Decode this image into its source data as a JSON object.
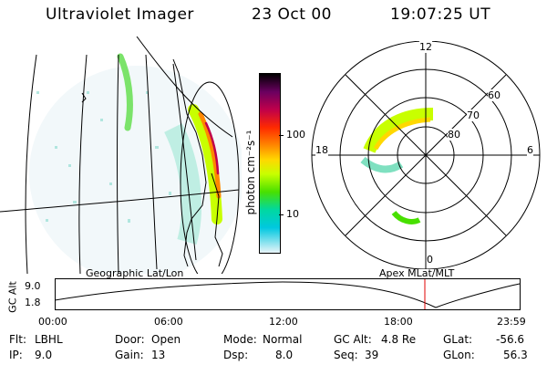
{
  "header": {
    "instrument": "Ultraviolet Imager",
    "date": "23 Oct 00",
    "time": "19:07:25 UT"
  },
  "colorbar": {
    "unit_label": "photon cm⁻²s⁻¹",
    "ticks": [
      "100",
      "10"
    ]
  },
  "polar": {
    "mlt_labels": [
      "12",
      "18",
      "6",
      "0"
    ],
    "lat_labels": [
      "60",
      "70",
      "80"
    ]
  },
  "labels": {
    "geo": "Geographic Lat/Lon",
    "apex": "Apex MLat/MLT"
  },
  "altitude_plot": {
    "ylabel": "GC Alt",
    "yticks": [
      "9.0",
      "1.8"
    ],
    "xticks": [
      "00:00",
      "06:00",
      "12:00",
      "18:00",
      "23:59"
    ]
  },
  "info": {
    "flt_label": "Flt:",
    "flt_value": "LBHL",
    "ip_label": "IP:",
    "ip_value": "9.0",
    "door_label": "Door:",
    "door_value": "Open",
    "gain_label": "Gain:",
    "gain_value": "13",
    "mode_label": "Mode:",
    "mode_value": "Normal",
    "dsp_label": "Dsp:",
    "dsp_value": "8.0",
    "gcalt_label": "GC Alt:",
    "gcalt_value": "4.8 Re",
    "seq_label": "Seq:",
    "seq_value": "39",
    "glat_label": "GLat:",
    "glat_value": "-56.6",
    "glon_label": "GLon:",
    "glon_value": "56.3"
  },
  "colors": {
    "marker": "#e00000",
    "colorbar_stops": [
      "#000000",
      "#6a0060",
      "#c0004a",
      "#ff2a00",
      "#ff8800",
      "#ffd800",
      "#c8ff00",
      "#48e000",
      "#00d8a0",
      "#00c8e0",
      "#e8f4f8"
    ]
  }
}
